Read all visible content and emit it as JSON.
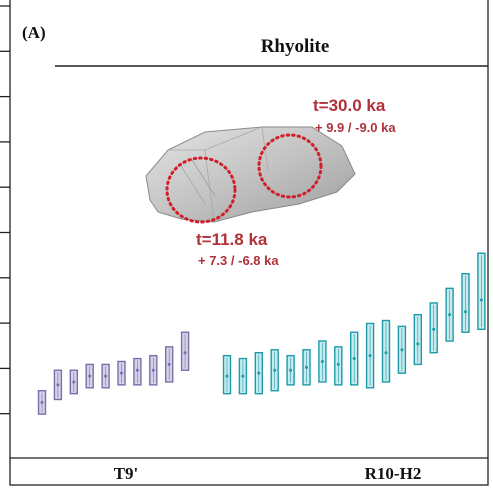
{
  "chart_data": {
    "type": "scatter",
    "panel_label": "(A)",
    "title": "Rhyolite",
    "groups": [
      {
        "name": "T9'",
        "color": "#7b6fa8",
        "fill": "#d7d1ea",
        "points": [
          {
            "y": 9.5,
            "lo": 7.5,
            "hi": 11.5
          },
          {
            "y": 12.5,
            "lo": 10.0,
            "hi": 15.0
          },
          {
            "y": 13.0,
            "lo": 11.0,
            "hi": 15.0
          },
          {
            "y": 14.0,
            "lo": 12.0,
            "hi": 16.0
          },
          {
            "y": 14.0,
            "lo": 12.0,
            "hi": 16.0
          },
          {
            "y": 14.5,
            "lo": 12.5,
            "hi": 16.5
          },
          {
            "y": 15.0,
            "lo": 12.5,
            "hi": 17.0
          },
          {
            "y": 15.0,
            "lo": 12.5,
            "hi": 17.5
          },
          {
            "y": 16.0,
            "lo": 13.0,
            "hi": 19.0
          },
          {
            "y": 18.0,
            "lo": 15.0,
            "hi": 21.5
          }
        ]
      },
      {
        "name": "R10-H2",
        "color": "#1f9aa6",
        "fill": "#c6ecef",
        "points": [
          {
            "y": 14.0,
            "lo": 11.0,
            "hi": 17.5
          },
          {
            "y": 14.0,
            "lo": 11.0,
            "hi": 17.0
          },
          {
            "y": 14.5,
            "lo": 11.0,
            "hi": 18.0
          },
          {
            "y": 15.0,
            "lo": 11.5,
            "hi": 18.5
          },
          {
            "y": 15.0,
            "lo": 12.5,
            "hi": 17.5
          },
          {
            "y": 15.5,
            "lo": 12.5,
            "hi": 18.5
          },
          {
            "y": 16.5,
            "lo": 13.0,
            "hi": 20.0
          },
          {
            "y": 16.0,
            "lo": 12.5,
            "hi": 19.0
          },
          {
            "y": 17.0,
            "lo": 12.5,
            "hi": 21.5
          },
          {
            "y": 17.5,
            "lo": 12.0,
            "hi": 23.0
          },
          {
            "y": 18.0,
            "lo": 13.0,
            "hi": 23.5
          },
          {
            "y": 18.5,
            "lo": 14.5,
            "hi": 22.5
          },
          {
            "y": 19.5,
            "lo": 16.0,
            "hi": 24.5
          },
          {
            "y": 22.0,
            "lo": 18.0,
            "hi": 26.5
          },
          {
            "y": 24.5,
            "lo": 20.0,
            "hi": 29.0
          },
          {
            "y": 25.0,
            "lo": 21.5,
            "hi": 31.5
          },
          {
            "y": 27.0,
            "lo": 22.0,
            "hi": 35.0
          }
        ]
      }
    ],
    "annotations": [
      {
        "age": "t=30.0 ka",
        "error": "+ 9.9 / -9.0 ka"
      },
      {
        "age": "t=11.8 ka",
        "error": "+ 7.3 / -6.8 ka"
      }
    ],
    "annotation_color": "#b1313a",
    "crystal_color": "#bfbfbf",
    "y_ticks_shown": 10
  }
}
